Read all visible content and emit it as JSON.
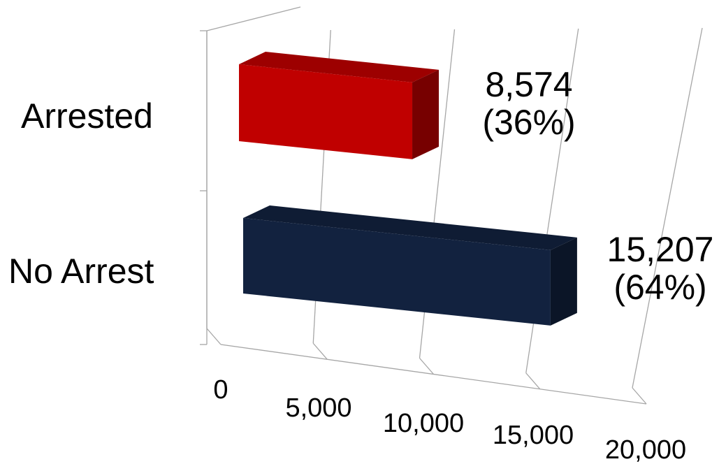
{
  "chart_data": {
    "type": "bar",
    "orientation": "horizontal",
    "style": "3d",
    "categories": [
      "Arrested",
      "No Arrest"
    ],
    "values": [
      8574,
      15207
    ],
    "data_labels": [
      "8,574",
      "15,207"
    ],
    "percent_labels": [
      "(36%)",
      "(64%)"
    ],
    "colors": [
      "#c00000",
      "#12223f"
    ],
    "xlim": [
      0,
      20000
    ],
    "x_ticks": [
      0,
      5000,
      10000,
      15000,
      20000
    ],
    "x_tick_labels": [
      "0",
      "5,000",
      "10,000",
      "15,000",
      "20,000"
    ],
    "grid": true,
    "legend": "none"
  }
}
